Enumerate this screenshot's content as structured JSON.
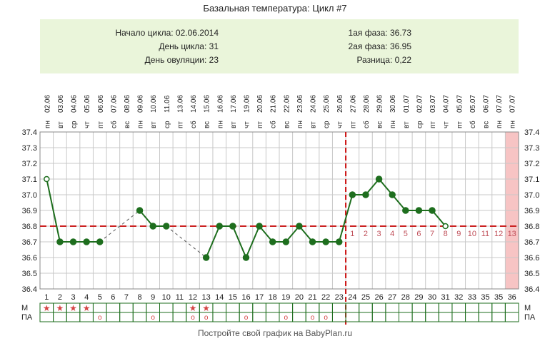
{
  "title": "Базальная температура: Цикл #7",
  "info": {
    "cycle_start": "Начало цикла: 02.06.2014",
    "cycle_day": "День цикла: 31",
    "ovulation_day": "День овуляции: 23",
    "phase1": "1ая фаза: 36.73",
    "phase2": "2ая фаза: 36.95",
    "difference": "Разница: 0,22"
  },
  "footer": "Постройте свой график на BabyPlan.ru",
  "colors": {
    "line": "#1e6e1e",
    "coverline": "#cc2222",
    "ovulation": "#cc1111",
    "info_bg": "#eaf5da",
    "grid": "#c8c8c8",
    "highlight": "#f7c4c4",
    "marker": "#d44444",
    "luteal_number": "#c0505a"
  },
  "chart_data": {
    "type": "line",
    "title": "Базальная температура: Цикл #7",
    "ylim": [
      36.4,
      37.4
    ],
    "yticks": [
      "37.4",
      "37.3",
      "37.2",
      "37.1",
      "37.0",
      "36.9",
      "36.8",
      "36.7",
      "36.6",
      "36.5",
      "36.4"
    ],
    "weekdays": [
      "пн",
      "вт",
      "ср",
      "чт",
      "пт",
      "сб",
      "вс",
      "пн",
      "вт",
      "ср",
      "пт",
      "сб",
      "вс",
      "пн",
      "вт",
      "чт",
      "пт",
      "сб",
      "вс",
      "пн",
      "вт",
      "ср",
      "чт",
      "пт",
      "сб",
      "вс",
      "пн",
      "вт",
      "ср",
      "пт",
      "чт",
      "пт",
      "сб",
      "вс",
      "пн",
      "пн"
    ],
    "dates": [
      "02.06",
      "03.06",
      "04.06",
      "05.06",
      "06.06",
      "07.06",
      "08.06",
      "09.06",
      "10.06",
      "11.06",
      "13.06",
      "14.06",
      "15.06",
      "16.06",
      "17.06",
      "19.06",
      "20.06",
      "21.06",
      "22.06",
      "23.06",
      "24.06",
      "25.06",
      "26.06",
      "27.06",
      "28.06",
      "29.06",
      "30.06",
      "01.07",
      "02.07",
      "03.07",
      "04.07",
      "05.07",
      "05.07",
      "06.07",
      "07.07",
      "07.07"
    ],
    "day_numbers": [
      "1",
      "2",
      "3",
      "4",
      "5",
      "6",
      "7",
      "8",
      "9",
      "10",
      "11",
      "12",
      "13",
      "14",
      "15",
      "16",
      "17",
      "18",
      "19",
      "20",
      "21",
      "22",
      "23",
      "24",
      "25",
      "26",
      "27",
      "28",
      "29",
      "30",
      "31",
      "32",
      "33",
      "35",
      "35",
      "36"
    ],
    "temperatures": [
      37.1,
      36.7,
      36.7,
      36.7,
      36.7,
      null,
      null,
      36.9,
      36.8,
      36.8,
      null,
      null,
      36.6,
      36.8,
      36.8,
      36.6,
      36.8,
      36.7,
      36.7,
      36.8,
      36.7,
      36.7,
      36.7,
      37.0,
      37.0,
      37.1,
      37.0,
      36.9,
      36.9,
      36.9,
      36.8,
      null,
      null,
      null,
      null,
      null
    ],
    "open_points": [
      1,
      31
    ],
    "dashed_segments": [
      [
        5,
        8
      ],
      [
        10,
        13
      ]
    ],
    "coverline": 36.8,
    "ovulation_day": 23,
    "luteal_numbers": [
      "1",
      "2",
      "3",
      "4",
      "5",
      "6",
      "7",
      "8",
      "9",
      "10",
      "11",
      "12",
      "13"
    ],
    "highlight_day": 36,
    "rows": [
      {
        "label": "М",
        "symbol": "★",
        "days": [
          1,
          2,
          3,
          4,
          12,
          13
        ]
      },
      {
        "label": "ПА",
        "symbol": "o",
        "days": [
          5,
          9,
          12,
          13,
          16,
          19,
          21,
          22
        ]
      }
    ]
  }
}
